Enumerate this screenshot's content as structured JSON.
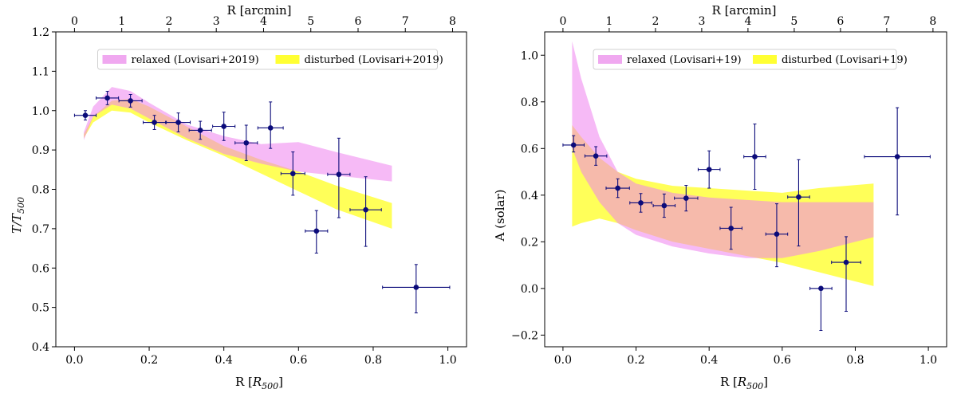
{
  "chart_data": [
    {
      "type": "scatter",
      "panel": "left",
      "xlabel": "R [R_500]",
      "xlabel_main": "R [",
      "xlabel_sub_main": "R",
      "xlabel_sub": "500",
      "xlabel_close": "]",
      "ylabel_main": "T/T",
      "ylabel_sub": "500",
      "top_xlabel": "R [arcmin]",
      "xlim": [
        -0.05,
        1.05
      ],
      "ylim": [
        0.4,
        1.2
      ],
      "xticks": [
        "0.0",
        "0.2",
        "0.4",
        "0.6",
        "0.8",
        "1.0"
      ],
      "yticks": [
        "0.4",
        "0.5",
        "0.6",
        "0.7",
        "0.8",
        "0.9",
        "1.0",
        "1.1",
        "1.2"
      ],
      "top_ticks": [
        "0",
        "1",
        "2",
        "3",
        "4",
        "5",
        "6",
        "7",
        "8"
      ],
      "arcmin_per_r500": 7.9,
      "legend": {
        "placement": "top",
        "entries": [
          {
            "label": "relaxed (Lovisari+2019)",
            "color": "#f0a8f0"
          },
          {
            "label": "disturbed (Lovisari+2019)",
            "color": "#ffff33"
          }
        ]
      },
      "bands": [
        {
          "name": "disturbed",
          "color": "#ffff00",
          "opacity": 0.65,
          "x": [
            0.025,
            0.05,
            0.1,
            0.15,
            0.2,
            0.3,
            0.4,
            0.5,
            0.6,
            0.7,
            0.85
          ],
          "lower": [
            0.93,
            0.97,
            1.0,
            0.995,
            0.97,
            0.925,
            0.885,
            0.84,
            0.795,
            0.75,
            0.7
          ],
          "upper": [
            0.94,
            0.985,
            1.025,
            1.03,
            1.01,
            0.96,
            0.91,
            0.875,
            0.845,
            0.81,
            0.765
          ]
        },
        {
          "name": "relaxed",
          "color": "#ee82ee",
          "opacity": 0.55,
          "x": [
            0.025,
            0.05,
            0.1,
            0.15,
            0.2,
            0.3,
            0.4,
            0.5,
            0.6,
            0.7,
            0.85
          ],
          "lower": [
            0.925,
            0.985,
            1.015,
            1.005,
            0.98,
            0.93,
            0.89,
            0.865,
            0.845,
            0.835,
            0.82
          ],
          "upper": [
            0.945,
            1.01,
            1.06,
            1.05,
            1.02,
            0.965,
            0.935,
            0.915,
            0.92,
            0.895,
            0.86
          ]
        }
      ],
      "points": [
        {
          "x": 0.029,
          "y": 0.988,
          "xerr": 0.029,
          "yerr": [
            0.012,
            0.012
          ]
        },
        {
          "x": 0.088,
          "y": 1.032,
          "xerr": 0.03,
          "yerr": [
            0.017,
            0.017
          ]
        },
        {
          "x": 0.15,
          "y": 1.025,
          "xerr": 0.031,
          "yerr": [
            0.016,
            0.016
          ]
        },
        {
          "x": 0.214,
          "y": 0.97,
          "xerr": 0.03,
          "yerr": [
            0.018,
            0.018
          ]
        },
        {
          "x": 0.278,
          "y": 0.97,
          "xerr": 0.032,
          "yerr": [
            0.024,
            0.024
          ]
        },
        {
          "x": 0.337,
          "y": 0.95,
          "xerr": 0.03,
          "yerr": [
            0.023,
            0.023
          ]
        },
        {
          "x": 0.4,
          "y": 0.96,
          "xerr": 0.03,
          "yerr": [
            0.036,
            0.036
          ]
        },
        {
          "x": 0.46,
          "y": 0.918,
          "xerr": 0.03,
          "yerr": [
            0.045,
            0.045
          ]
        },
        {
          "x": 0.525,
          "y": 0.956,
          "xerr": 0.034,
          "yerr": [
            0.052,
            0.066
          ]
        },
        {
          "x": 0.585,
          "y": 0.84,
          "xerr": 0.032,
          "yerr": [
            0.055,
            0.055
          ]
        },
        {
          "x": 0.648,
          "y": 0.694,
          "xerr": 0.03,
          "yerr": [
            0.056,
            0.052
          ]
        },
        {
          "x": 0.708,
          "y": 0.838,
          "xerr": 0.03,
          "yerr": [
            0.11,
            0.092
          ]
        },
        {
          "x": 0.78,
          "y": 0.748,
          "xerr": 0.042,
          "yerr": [
            0.093,
            0.084
          ]
        },
        {
          "x": 0.915,
          "y": 0.551,
          "xerr": 0.09,
          "yerr": [
            0.065,
            0.058
          ]
        }
      ]
    },
    {
      "type": "scatter",
      "panel": "right",
      "xlabel": "R [R_500]",
      "xlabel_main": "R [",
      "xlabel_sub_main": "R",
      "xlabel_sub": "500",
      "xlabel_close": "]",
      "ylabel_main": "A (solar)",
      "top_xlabel": "R [arcmin]",
      "xlim": [
        -0.05,
        1.05
      ],
      "ylim": [
        -0.25,
        1.1
      ],
      "xticks": [
        "0.0",
        "0.2",
        "0.4",
        "0.6",
        "0.8",
        "1.0"
      ],
      "yticks": [
        "−0.2",
        "0.0",
        "0.2",
        "0.4",
        "0.6",
        "0.8",
        "1.0"
      ],
      "top_ticks": [
        "0",
        "1",
        "2",
        "3",
        "4",
        "5",
        "6",
        "7",
        "8"
      ],
      "arcmin_per_r500": 7.9,
      "legend": {
        "placement": "top",
        "entries": [
          {
            "label": "relaxed (Lovisari+19)",
            "color": "#f0a8f0"
          },
          {
            "label": "disturbed (Lovisari+19)",
            "color": "#ffff33"
          }
        ]
      },
      "bands": [
        {
          "name": "disturbed",
          "color": "#ffff00",
          "opacity": 0.65,
          "x": [
            0.025,
            0.05,
            0.1,
            0.15,
            0.2,
            0.3,
            0.4,
            0.5,
            0.6,
            0.7,
            0.85
          ],
          "lower": [
            0.265,
            0.28,
            0.3,
            0.28,
            0.25,
            0.2,
            0.17,
            0.14,
            0.11,
            0.07,
            0.01
          ],
          "upper": [
            0.7,
            0.65,
            0.56,
            0.5,
            0.47,
            0.44,
            0.43,
            0.42,
            0.41,
            0.43,
            0.45
          ]
        },
        {
          "name": "relaxed",
          "color": "#ee82ee",
          "opacity": 0.55,
          "x": [
            0.025,
            0.05,
            0.1,
            0.15,
            0.2,
            0.3,
            0.4,
            0.5,
            0.6,
            0.7,
            0.85
          ],
          "lower": [
            0.6,
            0.5,
            0.37,
            0.28,
            0.23,
            0.18,
            0.15,
            0.13,
            0.13,
            0.16,
            0.22
          ],
          "upper": [
            1.06,
            0.9,
            0.65,
            0.5,
            0.45,
            0.41,
            0.39,
            0.38,
            0.37,
            0.37,
            0.37
          ]
        }
      ],
      "points": [
        {
          "x": 0.029,
          "y": 0.615,
          "xerr": 0.029,
          "yerr": [
            0.03,
            0.04
          ]
        },
        {
          "x": 0.09,
          "y": 0.568,
          "xerr": 0.03,
          "yerr": [
            0.04,
            0.04
          ]
        },
        {
          "x": 0.15,
          "y": 0.43,
          "xerr": 0.032,
          "yerr": [
            0.04,
            0.04
          ]
        },
        {
          "x": 0.213,
          "y": 0.367,
          "xerr": 0.03,
          "yerr": [
            0.04,
            0.04
          ]
        },
        {
          "x": 0.277,
          "y": 0.355,
          "xerr": 0.03,
          "yerr": [
            0.05,
            0.05
          ]
        },
        {
          "x": 0.337,
          "y": 0.387,
          "xerr": 0.032,
          "yerr": [
            0.055,
            0.055
          ]
        },
        {
          "x": 0.4,
          "y": 0.51,
          "xerr": 0.03,
          "yerr": [
            0.08,
            0.08
          ]
        },
        {
          "x": 0.46,
          "y": 0.258,
          "xerr": 0.03,
          "yerr": [
            0.09,
            0.09
          ]
        },
        {
          "x": 0.525,
          "y": 0.565,
          "xerr": 0.03,
          "yerr": [
            0.14,
            0.14
          ]
        },
        {
          "x": 0.585,
          "y": 0.233,
          "xerr": 0.03,
          "yerr": [
            0.14,
            0.13
          ]
        },
        {
          "x": 0.645,
          "y": 0.392,
          "xerr": 0.03,
          "yerr": [
            0.21,
            0.16
          ]
        },
        {
          "x": 0.706,
          "y": 0.0,
          "xerr": 0.03,
          "yerr": [
            0.18,
            0.0
          ]
        },
        {
          "x": 0.775,
          "y": 0.112,
          "xerr": 0.04,
          "yerr": [
            0.21,
            0.11
          ]
        },
        {
          "x": 0.915,
          "y": 0.565,
          "xerr": 0.09,
          "yerr": [
            0.25,
            0.21
          ]
        }
      ]
    }
  ]
}
